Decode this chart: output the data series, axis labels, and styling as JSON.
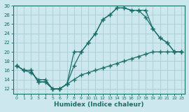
{
  "xlabel": "Humidex (Indice chaleur)",
  "bg_color": "#cce8ec",
  "grid_color": "#aaccd4",
  "line_color": "#1a6e6a",
  "xlim": [
    -0.5,
    23.5
  ],
  "ylim": [
    11,
    30
  ],
  "xticks": [
    0,
    1,
    2,
    3,
    4,
    5,
    6,
    7,
    8,
    9,
    10,
    11,
    12,
    13,
    14,
    15,
    16,
    17,
    18,
    19,
    20,
    21,
    22,
    23
  ],
  "yticks": [
    12,
    14,
    16,
    18,
    20,
    22,
    24,
    26,
    28,
    30
  ],
  "line1_x": [
    0,
    1,
    2,
    3,
    4,
    5,
    6,
    7,
    8,
    9,
    10,
    11,
    12,
    13,
    14,
    15,
    16,
    17,
    18,
    19,
    20,
    21,
    22,
    23
  ],
  "line1_y": [
    17,
    16,
    16,
    13.5,
    13.5,
    12,
    12,
    13,
    17,
    20,
    22,
    24,
    27,
    28,
    29.5,
    29.5,
    29,
    29,
    29,
    25,
    23,
    22,
    20,
    20
  ],
  "line2_x": [
    0,
    1,
    2,
    3,
    4,
    5,
    6,
    7,
    8,
    9,
    10,
    11,
    12,
    13,
    14,
    15,
    16,
    17,
    18,
    19,
    20,
    21,
    22,
    23
  ],
  "line2_y": [
    17,
    16,
    16,
    13.5,
    13.5,
    12,
    12,
    13,
    20,
    20,
    22,
    24,
    27,
    28,
    29.5,
    29.5,
    29,
    29,
    27.5,
    25,
    23,
    22,
    20,
    20
  ],
  "line3_x": [
    0,
    1,
    2,
    3,
    4,
    5,
    6,
    7,
    8,
    9,
    10,
    11,
    12,
    13,
    14,
    15,
    16,
    17,
    18,
    19,
    20,
    21,
    22,
    23
  ],
  "line3_y": [
    17,
    16,
    15.5,
    14,
    14,
    12,
    12,
    13,
    14,
    15,
    15.5,
    16,
    16.5,
    17,
    17.5,
    18,
    18.5,
    19,
    19.5,
    20,
    20,
    20,
    20,
    20
  ]
}
